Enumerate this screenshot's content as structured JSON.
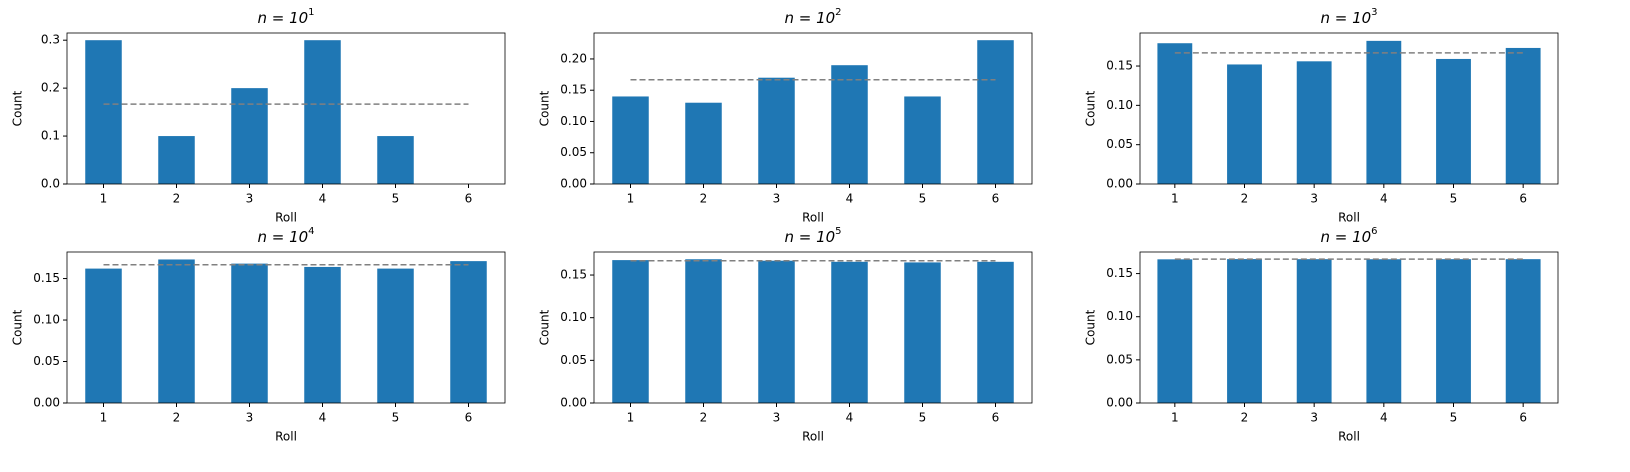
{
  "chart_data": [
    {
      "type": "bar",
      "title": "n = 10",
      "title_superscript": "1",
      "x_label": "Roll",
      "y_label": "Count",
      "categories": [
        "1",
        "2",
        "3",
        "4",
        "5",
        "6"
      ],
      "values": [
        0.3,
        0.1,
        0.2,
        0.3,
        0.1,
        0
      ],
      "color": "#1f77b4",
      "ylim": [
        0,
        0.315
      ],
      "yticks": [
        {
          "value": 0,
          "label": "0.0"
        },
        0.1,
        0.2,
        0.3
      ],
      "reference_line": 0.1667,
      "reference_color": "#808080"
    },
    {
      "type": "bar",
      "title": "n = 10",
      "title_superscript": "2",
      "x_label": "Roll",
      "y_label": "Count",
      "categories": [
        "1",
        "2",
        "3",
        "4",
        "5",
        "6"
      ],
      "values": [
        0.14,
        0.13,
        0.17,
        0.19,
        0.14,
        0.23
      ],
      "color": "#1f77b4",
      "ylim": [
        0,
        0.2415
      ],
      "yticks": [
        {
          "value": 0,
          "label": "0.00"
        },
        0.05,
        {
          "value": 0.1,
          "label": "0.10"
        },
        0.15,
        {
          "value": 0.2,
          "label": "0.20"
        }
      ],
      "reference_line": 0.1667,
      "reference_color": "#808080"
    },
    {
      "type": "bar",
      "title": "n = 10",
      "title_superscript": "3",
      "x_label": "Roll",
      "y_label": "Count",
      "categories": [
        "1",
        "2",
        "3",
        "4",
        "5",
        "6"
      ],
      "values": [
        0.179,
        0.152,
        0.156,
        0.182,
        0.159,
        0.173
      ],
      "color": "#1f77b4",
      "ylim": [
        0,
        0.192
      ],
      "yticks": [
        {
          "value": 0,
          "label": "0.00"
        },
        0.05,
        {
          "value": 0.1,
          "label": "0.10"
        },
        0.15
      ],
      "reference_line": 0.1667,
      "reference_color": "#808080"
    },
    {
      "type": "bar",
      "title": "n = 10",
      "title_superscript": "4",
      "x_label": "Roll",
      "y_label": "Count",
      "categories": [
        "1",
        "2",
        "3",
        "4",
        "5",
        "6"
      ],
      "values": [
        0.162,
        0.173,
        0.168,
        0.164,
        0.162,
        0.171
      ],
      "color": "#1f77b4",
      "ylim": [
        0,
        0.182
      ],
      "yticks": [
        {
          "value": 0,
          "label": "0.00"
        },
        0.05,
        {
          "value": 0.1,
          "label": "0.10"
        },
        0.15
      ],
      "reference_line": 0.1667,
      "reference_color": "#808080"
    },
    {
      "type": "bar",
      "title": "n = 10",
      "title_superscript": "5",
      "x_label": "Roll",
      "y_label": "Count",
      "categories": [
        "1",
        "2",
        "3",
        "4",
        "5",
        "6"
      ],
      "values": [
        0.1675,
        0.1685,
        0.1668,
        0.1655,
        0.1648,
        0.1655
      ],
      "color": "#1f77b4",
      "ylim": [
        0,
        0.177
      ],
      "yticks": [
        {
          "value": 0,
          "label": "0.00"
        },
        0.05,
        {
          "value": 0.1,
          "label": "0.10"
        },
        0.15
      ],
      "reference_line": 0.1667,
      "reference_color": "#808080"
    },
    {
      "type": "bar",
      "title": "n = 10",
      "title_superscript": "6",
      "x_label": "Roll",
      "y_label": "Count",
      "categories": [
        "1",
        "2",
        "3",
        "4",
        "5",
        "6"
      ],
      "values": [
        0.1665,
        0.1668,
        0.1667,
        0.1666,
        0.1667,
        0.1667
      ],
      "color": "#1f77b4",
      "ylim": [
        0,
        0.175
      ],
      "yticks": [
        {
          "value": 0,
          "label": "0.00"
        },
        0.05,
        {
          "value": 0.1,
          "label": "0.10"
        },
        0.15
      ],
      "reference_line": 0.1667,
      "reference_color": "#808080"
    }
  ]
}
